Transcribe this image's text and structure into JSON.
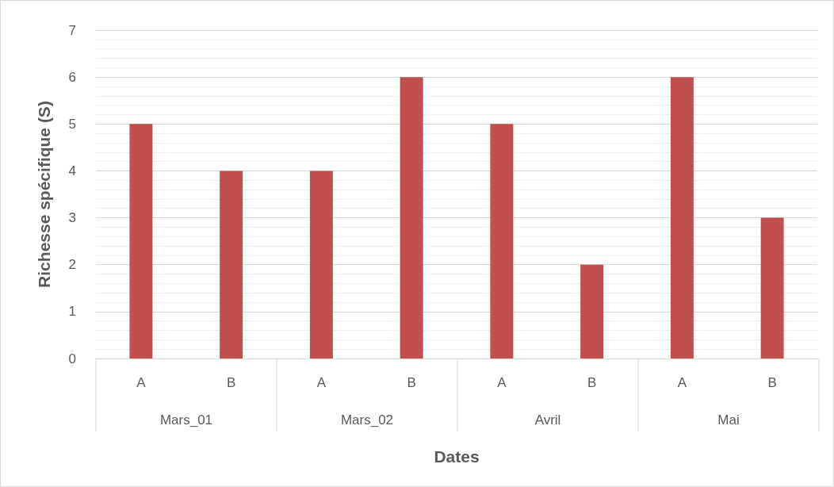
{
  "chart_data": {
    "type": "bar",
    "ylabel": "Richesse spécifique (S)",
    "xlabel": "Dates",
    "categories": [
      "A",
      "B",
      "A",
      "B",
      "A",
      "B",
      "A",
      "B"
    ],
    "annotations": [
      "Mars_01",
      "Mars_02",
      "Avril",
      "Mai"
    ],
    "values": [
      5,
      4,
      4,
      6,
      5,
      2,
      6,
      3
    ],
    "color": "#c0504d",
    "ylim": [
      0,
      7
    ],
    "yticks": [
      0,
      1,
      2,
      3,
      4,
      5,
      6,
      7
    ],
    "grid": true
  }
}
